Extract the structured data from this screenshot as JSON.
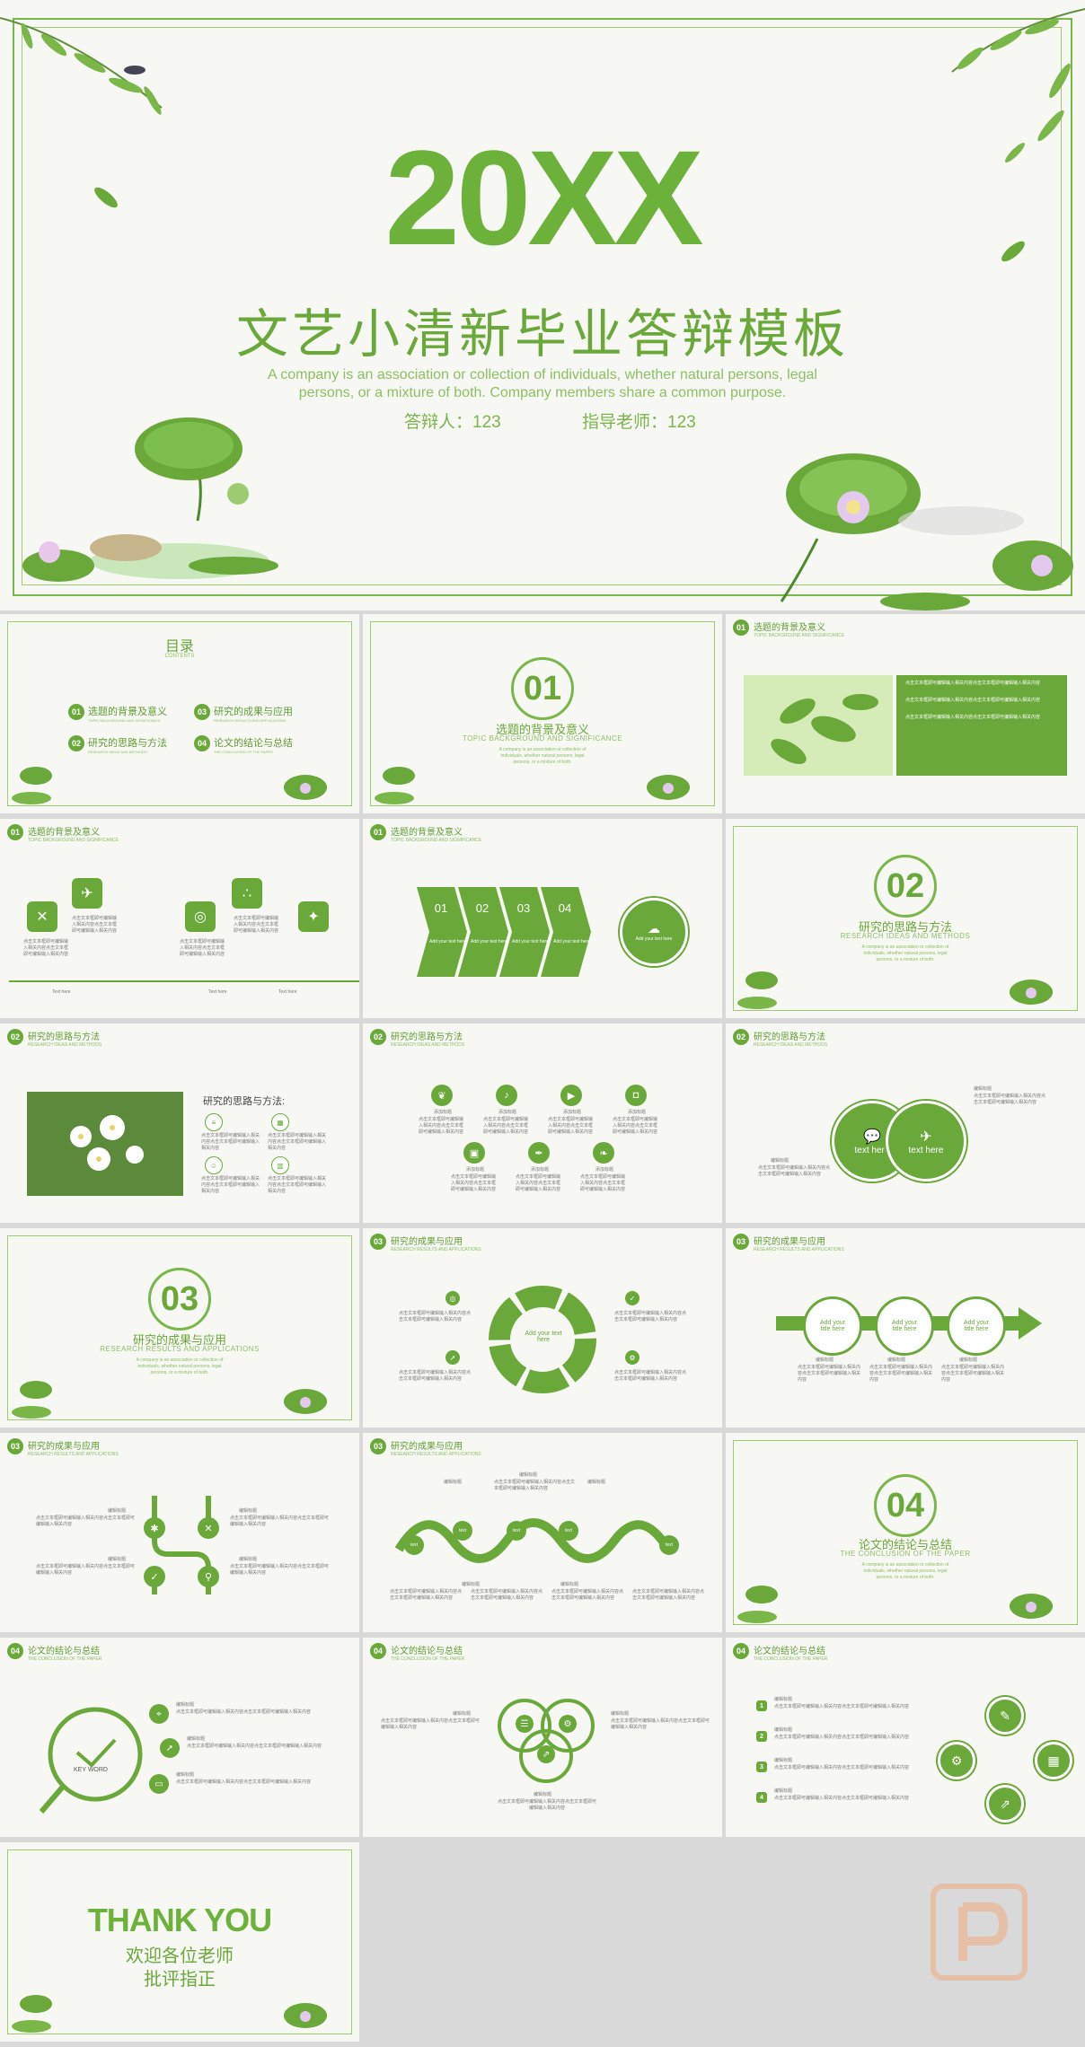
{
  "hero": {
    "year": "20XX",
    "title": "文艺小清新毕业答辩模板",
    "subtitle": "A company is an association or collection of individuals, whether natural persons, legal persons, or a mixture of both. Company members share a common purpose.",
    "defender": "答辩人：123",
    "advisor": "指导老师：123"
  },
  "toc": {
    "title": "目录",
    "subtitle": "CONTENTS",
    "items": [
      {
        "num": "01",
        "label": "选题的背景及意义",
        "sub": "TOPIC BACKGROUND AND SIGNIFICANCE"
      },
      {
        "num": "03",
        "label": "研究的成果与应用",
        "sub": "RESEARCH RESULTS AND APPLICATIONS"
      },
      {
        "num": "02",
        "label": "研究的思路与方法",
        "sub": "RESEARCH IDEAS AND METHODS"
      },
      {
        "num": "04",
        "label": "论文的结论与总结",
        "sub": "THE CONCLUSION OF THE PAPER"
      }
    ]
  },
  "sections": [
    {
      "num": "01",
      "title": "选题的背景及意义",
      "sub": "TOPIC BACKGROUND AND SIGNIFICANCE"
    },
    {
      "num": "02",
      "title": "研究的思路与方法",
      "sub": "RESEARCH IDEAS AND METHODS"
    },
    {
      "num": "03",
      "title": "研究的成果与应用",
      "sub": "RESEARCH RESULTS AND APPLICATIONS"
    },
    {
      "num": "04",
      "title": "论文的结论与总结",
      "sub": "THE CONCLUSION OF THE PAPER"
    }
  ],
  "sect_desc": "A company is an association or collection of individuals, whether natural persons, legal persons, or a mixture of both.",
  "body_text": "点击文本框即可编辑输入相关内容点击文本框即可编辑输入相关内容",
  "text_here": "Text here",
  "add_text": "Add your text here",
  "arrows": [
    "01",
    "02",
    "03",
    "04"
  ],
  "research_method_title": "研究的思路与方法:",
  "item_label": "添加标题",
  "heading_label": "编辑标题",
  "title_here": "Add your title here",
  "text_short": "text here",
  "text_word": "text",
  "keyword": "KEY WORD",
  "thanks": {
    "big": "THANK YOU",
    "line1": "欢迎各位老师",
    "line2": "批评指正"
  },
  "colors": {
    "green": "#6aa83a",
    "light": "#8cc063"
  }
}
